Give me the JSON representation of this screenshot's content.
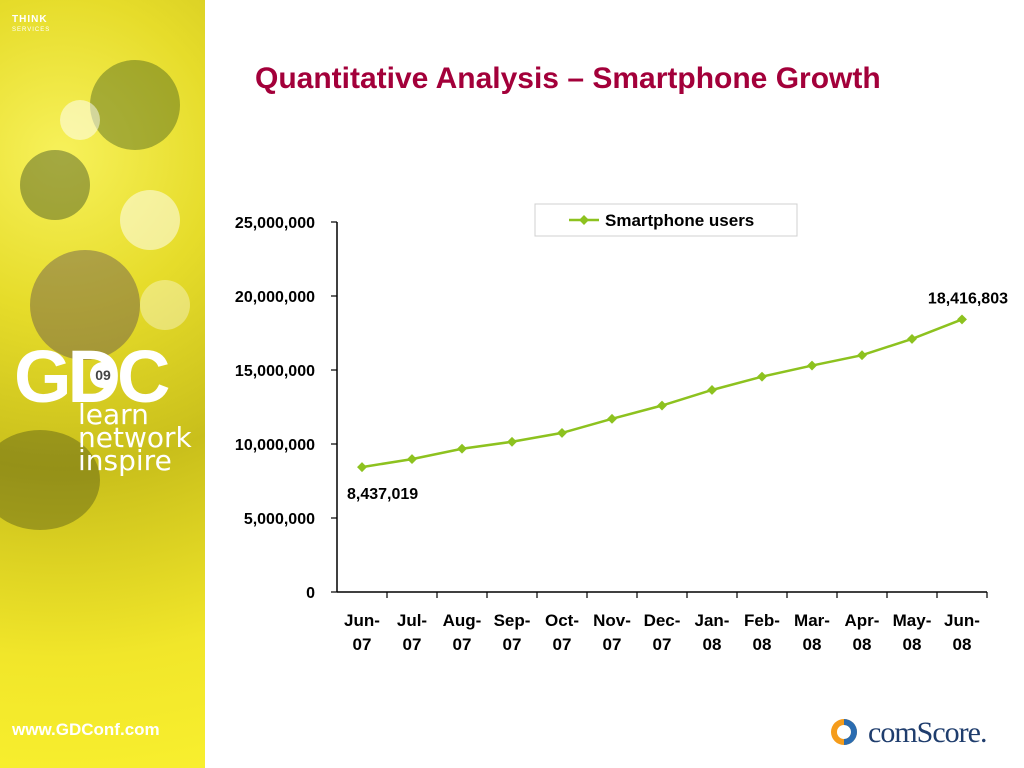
{
  "slide": {
    "title": "Quantitative Analysis – Smartphone Growth"
  },
  "sidebar": {
    "brand_top": "THINK",
    "brand_sub": "SERVICES",
    "logo_text": "GDC",
    "logo_year": "09",
    "tagline_1": "learn",
    "tagline_2": "network",
    "tagline_3": "inspire",
    "url": "www.GDConf.com"
  },
  "footer": {
    "comscore_logo": "comScore."
  },
  "colors": {
    "title": "#a3003a",
    "series": "#8dc21f",
    "sidebar": "#f1e62a"
  },
  "chart_data": {
    "type": "line",
    "title": "",
    "xlabel": "",
    "ylabel": "",
    "categories": [
      "Jun-07",
      "Jul-07",
      "Aug-07",
      "Sep-07",
      "Oct-07",
      "Nov-07",
      "Dec-07",
      "Jan-08",
      "Feb-08",
      "Mar-08",
      "Apr-08",
      "May-08",
      "Jun-08"
    ],
    "series": [
      {
        "name": "Smartphone users",
        "values": [
          8437019,
          8980000,
          9680000,
          10150000,
          10750000,
          11700000,
          12600000,
          13650000,
          14550000,
          15300000,
          16000000,
          17100000,
          18416803
        ]
      }
    ],
    "ylim": [
      0,
      25000000
    ],
    "yticks": [
      "0",
      "5,000,000",
      "10,000,000",
      "15,000,000",
      "20,000,000",
      "25,000,000"
    ],
    "annotations": [
      {
        "text": "8,437,019",
        "index": 0
      },
      {
        "text": "18,416,803",
        "index": 12
      }
    ],
    "legend": "top-right",
    "grid": false
  }
}
